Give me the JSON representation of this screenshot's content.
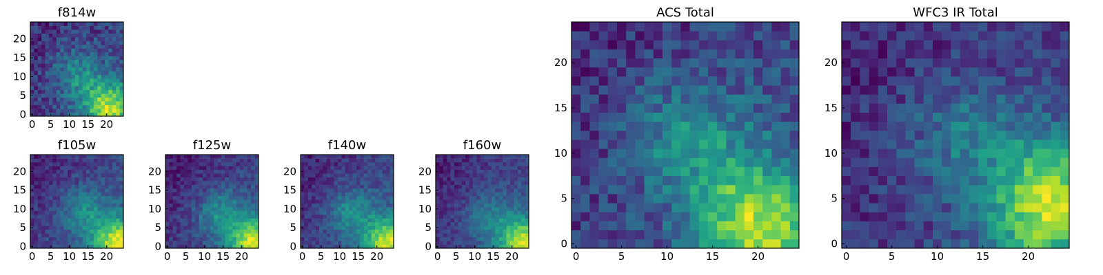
{
  "chart_data": [
    {
      "type": "heatmap",
      "title": "f814w",
      "colormap": "viridis",
      "grid_size": 25,
      "xlim": [
        0,
        24
      ],
      "ylim": [
        0,
        24
      ],
      "xticks": [
        0,
        5,
        10,
        15,
        20
      ],
      "yticks": [
        0,
        5,
        10,
        15,
        20
      ],
      "hotspots": [
        [
          22,
          1,
          1.0
        ],
        [
          12,
          11,
          0.55
        ],
        [
          18,
          4,
          0.5
        ]
      ],
      "noise": 0.3
    },
    {
      "type": "heatmap",
      "title": "f105w",
      "colormap": "viridis",
      "grid_size": 25,
      "xlim": [
        0,
        24
      ],
      "ylim": [
        0,
        24
      ],
      "xticks": [
        0,
        5,
        10,
        15,
        20
      ],
      "yticks": [
        0,
        5,
        10,
        15,
        20
      ],
      "hotspots": [
        [
          23,
          1,
          1.0
        ],
        [
          14,
          9,
          0.4
        ]
      ],
      "noise": 0.15
    },
    {
      "type": "heatmap",
      "title": "f125w",
      "colormap": "viridis",
      "grid_size": 25,
      "xlim": [
        0,
        24
      ],
      "ylim": [
        0,
        24
      ],
      "xticks": [
        0,
        5,
        10,
        15,
        20
      ],
      "yticks": [
        0,
        5,
        10,
        15,
        20
      ],
      "hotspots": [
        [
          23,
          1,
          1.0
        ],
        [
          14,
          9,
          0.45
        ]
      ],
      "noise": 0.15
    },
    {
      "type": "heatmap",
      "title": "f140w",
      "colormap": "viridis",
      "grid_size": 25,
      "xlim": [
        0,
        24
      ],
      "ylim": [
        0,
        24
      ],
      "xticks": [
        0,
        5,
        10,
        15,
        20
      ],
      "yticks": [
        0,
        5,
        10,
        15,
        20
      ],
      "hotspots": [
        [
          23,
          1,
          1.0
        ],
        [
          13,
          9,
          0.45
        ]
      ],
      "noise": 0.15
    },
    {
      "type": "heatmap",
      "title": "f160w",
      "colormap": "viridis",
      "grid_size": 25,
      "xlim": [
        0,
        24
      ],
      "ylim": [
        0,
        24
      ],
      "xticks": [
        0,
        5,
        10,
        15,
        20
      ],
      "yticks": [
        0,
        5,
        10,
        15,
        20
      ],
      "hotspots": [
        [
          23,
          1,
          1.0
        ],
        [
          14,
          8,
          0.35
        ]
      ],
      "noise": 0.14
    },
    {
      "type": "heatmap",
      "title": "ACS Total",
      "colormap": "viridis",
      "grid_size": 25,
      "xlim": [
        0,
        24
      ],
      "ylim": [
        0,
        24
      ],
      "xticks": [
        0,
        5,
        10,
        15,
        20
      ],
      "yticks": [
        0,
        5,
        10,
        15,
        20
      ],
      "hotspots": [
        [
          21,
          1,
          1.0
        ],
        [
          12,
          12,
          0.6
        ],
        [
          18,
          5,
          0.55
        ]
      ],
      "noise": 0.3
    },
    {
      "type": "heatmap",
      "title": "WFC3 IR Total",
      "colormap": "viridis",
      "grid_size": 25,
      "xlim": [
        0,
        24
      ],
      "ylim": [
        0,
        24
      ],
      "xticks": [
        0,
        5,
        10,
        15,
        20
      ],
      "yticks": [
        0,
        5,
        10,
        15,
        20
      ],
      "hotspots": [
        [
          23,
          6,
          1.0
        ],
        [
          21,
          2,
          0.8
        ],
        [
          13,
          12,
          0.55
        ]
      ],
      "noise": 0.28
    }
  ]
}
